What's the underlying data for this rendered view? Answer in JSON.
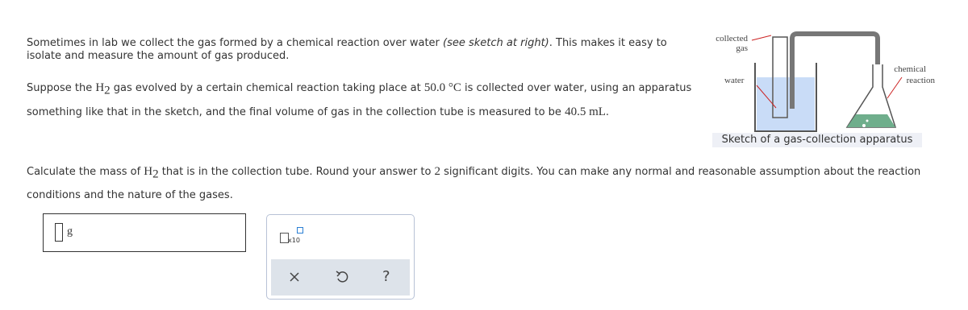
{
  "intro": {
    "part1": "Sometimes in lab we collect the gas formed by a chemical reaction over water ",
    "italic": "(see sketch at right)",
    "part2": ". This makes it easy to isolate and measure the amount of gas produced."
  },
  "setup": {
    "part1": "Suppose the ",
    "element": "H",
    "subscript": "2",
    "part2": " gas evolved by a certain chemical reaction taking place at ",
    "temperature": "50.0 °C",
    "part3": " is collected over water, using an apparatus something like that in the sketch, and the final volume of gas in the collection tube is measured to be ",
    "volume": "40.5 mL",
    "part4": "."
  },
  "sketch": {
    "label_gas_line1": "collected",
    "label_gas_line2": "gas",
    "label_water": "water",
    "label_reaction_line1": "chemical",
    "label_reaction_line2": "reaction",
    "caption": "Sketch of a gas-collection apparatus"
  },
  "question": {
    "part1": "Calculate the mass of ",
    "element": "H",
    "subscript": "2",
    "part2": " that is in the collection tube. Round your answer to ",
    "digits": "2",
    "part3": " significant digits. You can make any normal and reasonable assumption about the reaction conditions and the nature of the gases."
  },
  "answer": {
    "unit": "g"
  },
  "toolbar": {
    "exponent_label": "x10",
    "help": "?"
  }
}
